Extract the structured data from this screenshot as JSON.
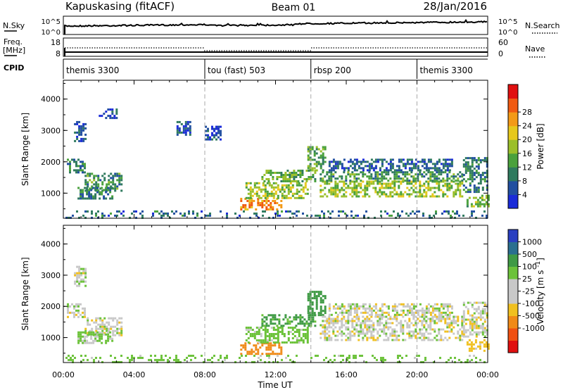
{
  "header": {
    "station": "Kapuskasing (fitACF)",
    "beam": "Beam 01",
    "date": "28/Jan/2016"
  },
  "aux_panels": {
    "nsky": {
      "label": "N.Sky",
      "ticks_left": [
        "10^5",
        "10^0"
      ],
      "ticks_right": [
        "10^5",
        "10^0"
      ],
      "right_label": "N.Search"
    },
    "freq": {
      "label_line1": "Freq.",
      "label_line2": "[MHz]",
      "ticks_left": [
        "18",
        "8"
      ],
      "ticks_right": [
        "60",
        "0"
      ],
      "right_label": "Nave"
    },
    "cpid": {
      "label": "CPID",
      "segments": [
        {
          "start": 0,
          "name": "themis 3300"
        },
        {
          "start": 8,
          "name": "tou (fast) 503"
        },
        {
          "start": 14,
          "name": "rbsp 200"
        },
        {
          "start": 20,
          "name": "themis 3300"
        }
      ]
    }
  },
  "chart_data": [
    {
      "type": "heatmap",
      "title": "",
      "xlabel": "Time UT",
      "ylabel": "Slant Range [km]",
      "xlim": [
        0,
        24
      ],
      "ylim": [
        200,
        4600
      ],
      "x_ticks": [
        "00:00",
        "04:00",
        "08:00",
        "12:00",
        "16:00",
        "20:00",
        "00:00"
      ],
      "y_ticks": [
        1000,
        2000,
        3000,
        4000
      ],
      "grid": false,
      "colorbar": {
        "label": "Power [dB]",
        "ticks": [
          "4",
          "8",
          "12",
          "16",
          "20",
          "24",
          "28"
        ],
        "colors": [
          "#1a2bd8",
          "#214fa0",
          "#2f7a5e",
          "#4aa13c",
          "#9bbf2a",
          "#e6c81c",
          "#f39a17",
          "#f05a12",
          "#e01010"
        ]
      },
      "regions": [
        {
          "t0": 0.6,
          "t1": 1.2,
          "r0": 2650,
          "r1": 3300,
          "value": 6
        },
        {
          "t0": 0.2,
          "t1": 1.2,
          "r0": 1650,
          "r1": 2100,
          "value": 10
        },
        {
          "t0": 1.2,
          "t1": 3.3,
          "r0": 1050,
          "r1": 1650,
          "value": 12
        },
        {
          "t0": 0.8,
          "t1": 2.8,
          "r0": 800,
          "r1": 1200,
          "value": 9
        },
        {
          "t0": 2.0,
          "t1": 3.0,
          "r0": 3400,
          "r1": 3700,
          "value": 5
        },
        {
          "t0": 6.4,
          "t1": 7.2,
          "r0": 2850,
          "r1": 3300,
          "value": 6
        },
        {
          "t0": 8.0,
          "t1": 8.9,
          "r0": 2700,
          "r1": 3150,
          "value": 6
        },
        {
          "t0": 10.0,
          "t1": 12.3,
          "r0": 450,
          "r1": 850,
          "value": 27
        },
        {
          "t0": 10.3,
          "t1": 13.8,
          "r0": 850,
          "r1": 1350,
          "value": 18
        },
        {
          "t0": 11.2,
          "t1": 14.3,
          "r0": 1350,
          "r1": 1750,
          "value": 15
        },
        {
          "t0": 13.8,
          "t1": 14.8,
          "r0": 1700,
          "r1": 2500,
          "value": 14
        },
        {
          "t0": 14.5,
          "t1": 22.6,
          "r0": 900,
          "r1": 1400,
          "value": 17
        },
        {
          "t0": 14.5,
          "t1": 22.6,
          "r0": 1400,
          "r1": 1700,
          "value": 12
        },
        {
          "t0": 15.0,
          "t1": 22.0,
          "r0": 1700,
          "r1": 2100,
          "value": 7
        },
        {
          "t0": 22.6,
          "t1": 24.0,
          "r0": 1050,
          "r1": 2150,
          "value": 10
        },
        {
          "t0": 22.8,
          "t1": 24.0,
          "r0": 600,
          "r1": 950,
          "value": 16
        },
        {
          "t0": 0.0,
          "t1": 24.0,
          "r0": 200,
          "r1": 450,
          "value": 8
        }
      ]
    },
    {
      "type": "heatmap",
      "title": "",
      "xlabel": "Time UT",
      "ylabel": "Slant Range [km]",
      "xlim": [
        0,
        24
      ],
      "ylim": [
        200,
        4600
      ],
      "x_ticks": [
        "00:00",
        "04:00",
        "08:00",
        "12:00",
        "16:00",
        "20:00",
        "00:00"
      ],
      "y_ticks": [
        1000,
        2000,
        3000,
        4000
      ],
      "grid": false,
      "colorbar": {
        "label": "Velocity",
        "unit_text": "[m s",
        "unit_sup": "-1",
        "unit_close": "]",
        "ticks": [
          "1000",
          "500",
          "100",
          "25",
          "-25",
          "-100",
          "-500",
          "-1000"
        ],
        "colors": [
          "#2a3fc0",
          "#2a6f8f",
          "#3f9a45",
          "#6cc23a",
          "#c8c8c8",
          "#c8c8c8",
          "#f0c020",
          "#f08a18",
          "#f05012",
          "#e01010"
        ]
      },
      "regions": [
        {
          "t0": 0.2,
          "t1": 1.2,
          "r0": 1650,
          "r1": 2100,
          "value": 0
        },
        {
          "t0": 1.2,
          "t1": 3.3,
          "r0": 1050,
          "r1": 1650,
          "value": 0
        },
        {
          "t0": 0.8,
          "t1": 2.8,
          "r0": 800,
          "r1": 1200,
          "value": 40
        },
        {
          "t0": 0.6,
          "t1": 1.2,
          "r0": 2650,
          "r1": 3300,
          "value": 0
        },
        {
          "t0": 10.0,
          "t1": 12.3,
          "r0": 450,
          "r1": 850,
          "value": -150
        },
        {
          "t0": 10.3,
          "t1": 13.8,
          "r0": 850,
          "r1": 1350,
          "value": 60
        },
        {
          "t0": 11.2,
          "t1": 14.3,
          "r0": 1350,
          "r1": 1750,
          "value": 120
        },
        {
          "t0": 13.8,
          "t1": 14.8,
          "r0": 1700,
          "r1": 2500,
          "value": 150
        },
        {
          "t0": 14.5,
          "t1": 22.6,
          "r0": 900,
          "r1": 1700,
          "value": 0
        },
        {
          "t0": 15.0,
          "t1": 22.0,
          "r0": 1700,
          "r1": 2100,
          "value": 0
        },
        {
          "t0": 22.6,
          "t1": 24.0,
          "r0": 1050,
          "r1": 2150,
          "value": 0
        },
        {
          "t0": 22.8,
          "t1": 24.0,
          "r0": 600,
          "r1": 950,
          "value": -60
        },
        {
          "t0": 0.0,
          "t1": 24.0,
          "r0": 200,
          "r1": 450,
          "value": 60
        }
      ]
    }
  ]
}
